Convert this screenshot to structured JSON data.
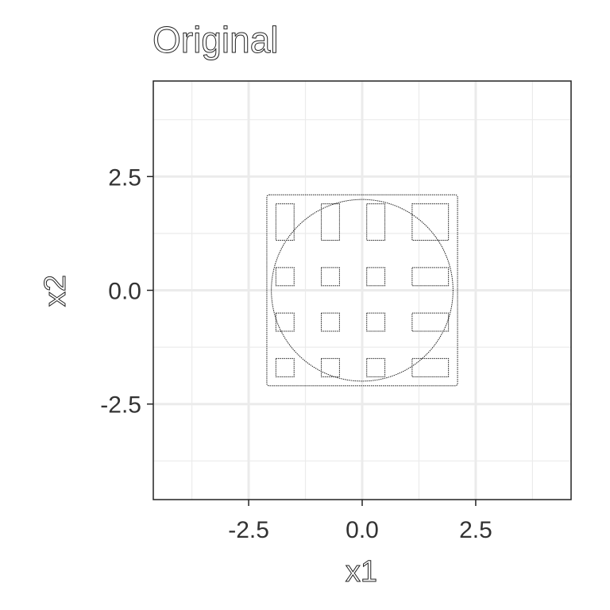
{
  "chart_data": {
    "type": "scatter",
    "title": "Original",
    "xlabel": "x1",
    "ylabel": "x2",
    "xlim": [
      -4.6,
      4.6
    ],
    "ylim": [
      -4.6,
      4.6
    ],
    "x_major_ticks": [
      -2.5,
      0.0,
      2.5
    ],
    "x_tick_labels": [
      "-2.5",
      "0.0",
      "2.5"
    ],
    "y_major_ticks": [
      -2.5,
      0.0,
      2.5
    ],
    "y_tick_labels": [
      "-2.5",
      "0.0",
      "2.5"
    ],
    "x_minor_ticks": [
      -3.75,
      -1.25,
      1.25,
      3.75
    ],
    "y_minor_ticks": [
      -3.75,
      -1.25,
      1.25,
      3.75
    ],
    "grid": true,
    "legend": "none",
    "colors": {
      "panel_border": "#222222",
      "grid": "#ebebeb",
      "mark": "#222222"
    },
    "shape": {
      "description_of_marks": "dense point cloud forming a square frame with a circle and a 4x4 lattice of cells",
      "square_extent": [
        -2.1,
        2.1
      ],
      "circle_radius": 2.0,
      "cell_edges": [
        -1.9,
        -1.5,
        -0.9,
        -0.5,
        0.1,
        0.5,
        1.1,
        1.5,
        1.9
      ]
    }
  }
}
